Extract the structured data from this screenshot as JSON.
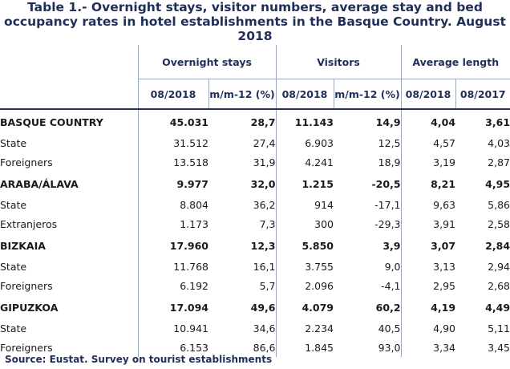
{
  "title": {
    "line1": "Table 1.- Overnight stays, visitor numbers, average stay and bed",
    "line2": "occupancy rates in hotel establishments in the Basque Country. August",
    "line3": "2018"
  },
  "header": {
    "groups": [
      "Overnight stays",
      "Visitors",
      "Average length"
    ],
    "columns": [
      "08/2018",
      "m/m-12 (%)",
      "08/2018",
      "m/m-12 (%)",
      "08/2018",
      "08/2017"
    ]
  },
  "rows": [
    {
      "label": "BASQUE COUNTRY",
      "type": "region",
      "values": [
        "45.031",
        "28,7",
        "11.143",
        "14,9",
        "4,04",
        "3,61"
      ]
    },
    {
      "label": "State",
      "type": "sub",
      "values": [
        "31.512",
        "27,4",
        "6.903",
        "12,5",
        "4,57",
        "4,03"
      ]
    },
    {
      "label": "Foreigners",
      "type": "sub",
      "values": [
        "13.518",
        "31,9",
        "4.241",
        "18,9",
        "3,19",
        "2,87"
      ]
    },
    {
      "label": "ARABA/ÁLAVA",
      "type": "region",
      "values": [
        "9.977",
        "32,0",
        "1.215",
        "-20,5",
        "8,21",
        "4,95"
      ]
    },
    {
      "label": "State",
      "type": "sub",
      "values": [
        "8.804",
        "36,2",
        "914",
        "-17,1",
        "9,63",
        "5,86"
      ]
    },
    {
      "label": "Extranjeros",
      "type": "sub",
      "values": [
        "1.173",
        "7,3",
        "300",
        "-29,3",
        "3,91",
        "2,58"
      ]
    },
    {
      "label": "BIZKAIA",
      "type": "region",
      "values": [
        "17.960",
        "12,3",
        "5.850",
        "3,9",
        "3,07",
        "2,84"
      ]
    },
    {
      "label": "State",
      "type": "sub",
      "values": [
        "11.768",
        "16,1",
        "3.755",
        "9,0",
        "3,13",
        "2,94"
      ]
    },
    {
      "label": "Foreigners",
      "type": "sub",
      "values": [
        "6.192",
        "5,7",
        "2.096",
        "-4,1",
        "2,95",
        "2,68"
      ]
    },
    {
      "label": "GIPUZKOA",
      "type": "region",
      "values": [
        "17.094",
        "49,6",
        "4.079",
        "60,2",
        "4,19",
        "4,49"
      ]
    },
    {
      "label": "State",
      "type": "sub",
      "values": [
        "10.941",
        "34,6",
        "2.234",
        "40,5",
        "4,90",
        "5,11"
      ]
    },
    {
      "label": "Foreigners",
      "type": "sub",
      "values": [
        "6.153",
        "86,6",
        "1.845",
        "93,0",
        "3,34",
        "3,45"
      ]
    }
  ],
  "source": "Source: Eustat. Survey on tourist establishments"
}
